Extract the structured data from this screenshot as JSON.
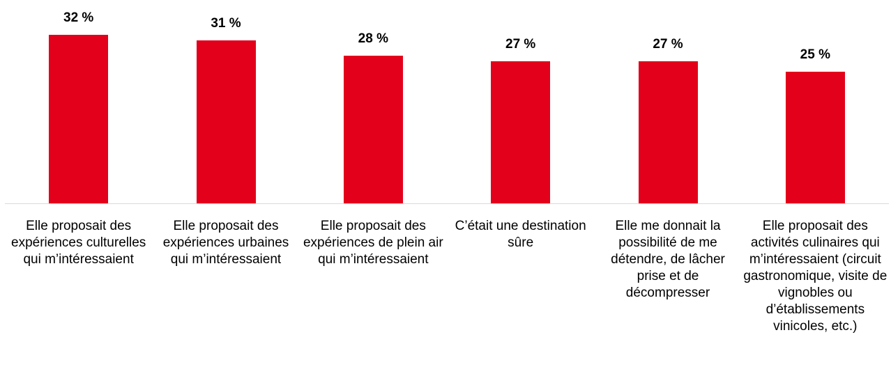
{
  "chart_data": {
    "type": "bar",
    "categories": [
      "Elle proposait des expériences culturelles qui m’intéressaient",
      "Elle proposait des expériences urbaines qui m’intéressaient",
      "Elle proposait des expériences de plein air qui m’intéressaient",
      "C’était une destination sûre",
      "Elle me donnait la possibilité de me détendre, de lâcher prise et de décompresser",
      "Elle proposait des activités culinaires qui m’intéressaient (circuit gastronomique, visite de vignobles ou d’établissements vinicoles, etc.)"
    ],
    "values": [
      32,
      31,
      28,
      27,
      27,
      25
    ],
    "value_labels": [
      "32 %",
      "31 %",
      "28 %",
      "27 %",
      "27 %",
      "25 %"
    ],
    "color": "#e3001b"
  }
}
